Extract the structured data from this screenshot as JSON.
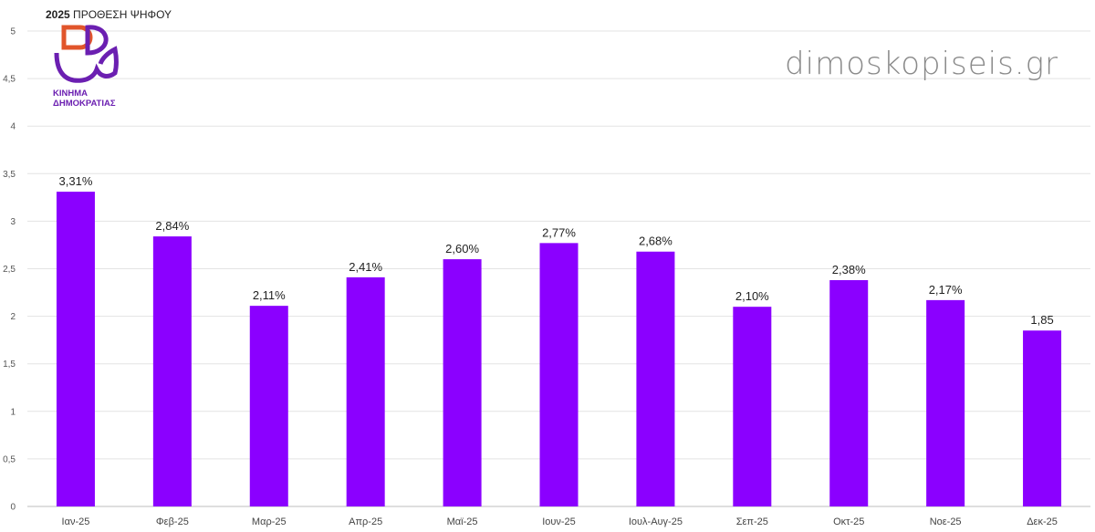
{
  "header": {
    "year": "2025",
    "title": "ΠΡΟΘΕΣΗ ΨΗΦΟΥ"
  },
  "logo": {
    "line1": "ΚΙΝΗΜΑ",
    "line2": "ΔΗΜΟΚΡΑΤΙΑΣ",
    "colors": {
      "purple": "#6b1fb1",
      "orange": "#e1552b"
    }
  },
  "watermark": "dimoskopiseis.gr",
  "chart_data": {
    "type": "bar",
    "categories": [
      "Ιαν-25",
      "Φεβ-25",
      "Μαρ-25",
      "Απρ-25",
      "Μαϊ-25",
      "Ιουν-25",
      "Ιουλ-Αυγ-25",
      "Σεπ-25",
      "Οκτ-25",
      "Νοε-25",
      "Δεκ-25"
    ],
    "values": [
      3.31,
      2.84,
      2.11,
      2.41,
      2.6,
      2.77,
      2.68,
      2.1,
      2.38,
      2.17,
      1.85
    ],
    "data_labels": [
      "3,31%",
      "2,84%",
      "2,11%",
      "2,41%",
      "2,60%",
      "2,77%",
      "2,68%",
      "2,10%",
      "2,38%",
      "2,17%",
      "1,85"
    ],
    "ylim": [
      0,
      5
    ],
    "yticks": [
      0,
      0.5,
      1,
      1.5,
      2,
      2.5,
      3,
      3.5,
      4,
      4.5,
      5
    ],
    "ytick_labels": [
      "0",
      "0,5",
      "1",
      "1,5",
      "2",
      "2,5",
      "3",
      "3,5",
      "4",
      "4,5",
      "5"
    ],
    "grid": true,
    "bar_color": "#8b00ff",
    "grid_color": "#e3e3e3"
  }
}
